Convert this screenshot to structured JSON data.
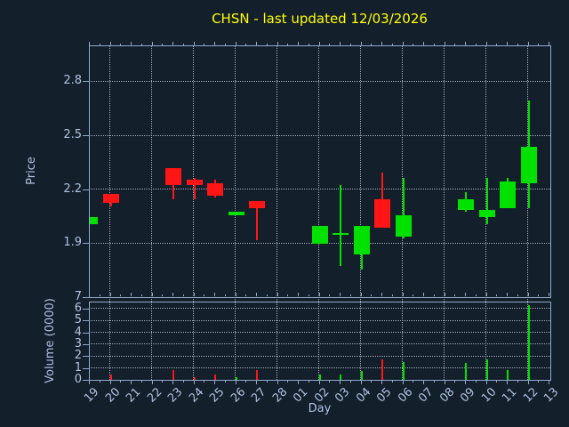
{
  "title": "CHSN - last updated 12/03/2026",
  "colors": {
    "background": "#141f2c",
    "up": "#00e100",
    "down": "#ff1515",
    "spine": "#8fa9c9",
    "grid": "rgba(205,212,221,0.75)",
    "tick_text": "#aec2de",
    "title_text": "#ffff00"
  },
  "chart_data": {
    "type": "candlestick_with_volume",
    "title": "CHSN - last updated 12/03/2026",
    "xlabel": "Day",
    "ylabel_price": "Price",
    "ylabel_volume": "Volume (0000)",
    "x_categories": [
      "19",
      "20",
      "21",
      "22",
      "23",
      "24",
      "25",
      "26",
      "27",
      "28",
      "01",
      "02",
      "03",
      "04",
      "05",
      "06",
      "07",
      "08",
      "09",
      "10",
      "11",
      "12",
      "13"
    ],
    "price_axis": {
      "min": 1.6,
      "max": 3.0,
      "tick_labels": [
        1.9,
        2.2,
        2.5,
        2.8
      ]
    },
    "volume_axis": {
      "min": 0,
      "max": 6.6,
      "tick_labels": [
        0,
        1,
        2,
        3,
        4,
        5,
        6,
        7
      ],
      "grid_levels": [
        1,
        2,
        3,
        4,
        5,
        6
      ]
    },
    "grid": "dotted; vertical line every 2 days; horizontal at price ticks and volume integers",
    "legend": "none",
    "series": [
      {
        "day": "19",
        "open": 2.01,
        "high": 2.05,
        "low": 2.01,
        "close": 2.05,
        "volume": 0
      },
      {
        "day": "20",
        "open": 2.18,
        "high": 2.18,
        "low": 2.11,
        "close": 2.13,
        "volume": 0.5
      },
      {
        "day": "23",
        "open": 2.32,
        "high": 2.32,
        "low": 2.15,
        "close": 2.23,
        "volume": 0.9
      },
      {
        "day": "24",
        "open": 2.26,
        "high": 2.27,
        "low": 2.15,
        "close": 2.23,
        "volume": 0.3
      },
      {
        "day": "25",
        "open": 2.24,
        "high": 2.26,
        "low": 2.16,
        "close": 2.17,
        "volume": 0.5
      },
      {
        "day": "26",
        "open": 2.06,
        "high": 2.08,
        "low": 2.06,
        "close": 2.08,
        "volume": 0.3
      },
      {
        "day": "27",
        "open": 2.14,
        "high": 2.14,
        "low": 1.92,
        "close": 2.1,
        "volume": 0.9
      },
      {
        "day": "02",
        "open": 1.9,
        "high": 2.0,
        "low": 1.9,
        "close": 2.0,
        "volume": 0.5
      },
      {
        "day": "03",
        "open": 1.95,
        "high": 2.23,
        "low": 1.78,
        "close": 1.96,
        "volume": 0.5
      },
      {
        "day": "04",
        "open": 1.84,
        "high": 2.0,
        "low": 1.76,
        "close": 2.0,
        "volume": 0.8
      },
      {
        "day": "05",
        "open": 2.15,
        "high": 2.3,
        "low": 1.99,
        "close": 1.99,
        "volume": 1.8
      },
      {
        "day": "06",
        "open": 1.94,
        "high": 2.27,
        "low": 1.93,
        "close": 2.06,
        "volume": 1.6
      },
      {
        "day": "09",
        "open": 2.09,
        "high": 2.19,
        "low": 2.08,
        "close": 2.15,
        "volume": 1.5
      },
      {
        "day": "10",
        "open": 2.05,
        "high": 2.27,
        "low": 2.01,
        "close": 2.09,
        "volume": 1.8
      },
      {
        "day": "11",
        "open": 2.1,
        "high": 2.27,
        "low": 2.1,
        "close": 2.25,
        "volume": 0.9
      },
      {
        "day": "12",
        "open": 2.24,
        "high": 2.7,
        "low": 2.1,
        "close": 2.44,
        "volume": 6.4
      }
    ]
  }
}
